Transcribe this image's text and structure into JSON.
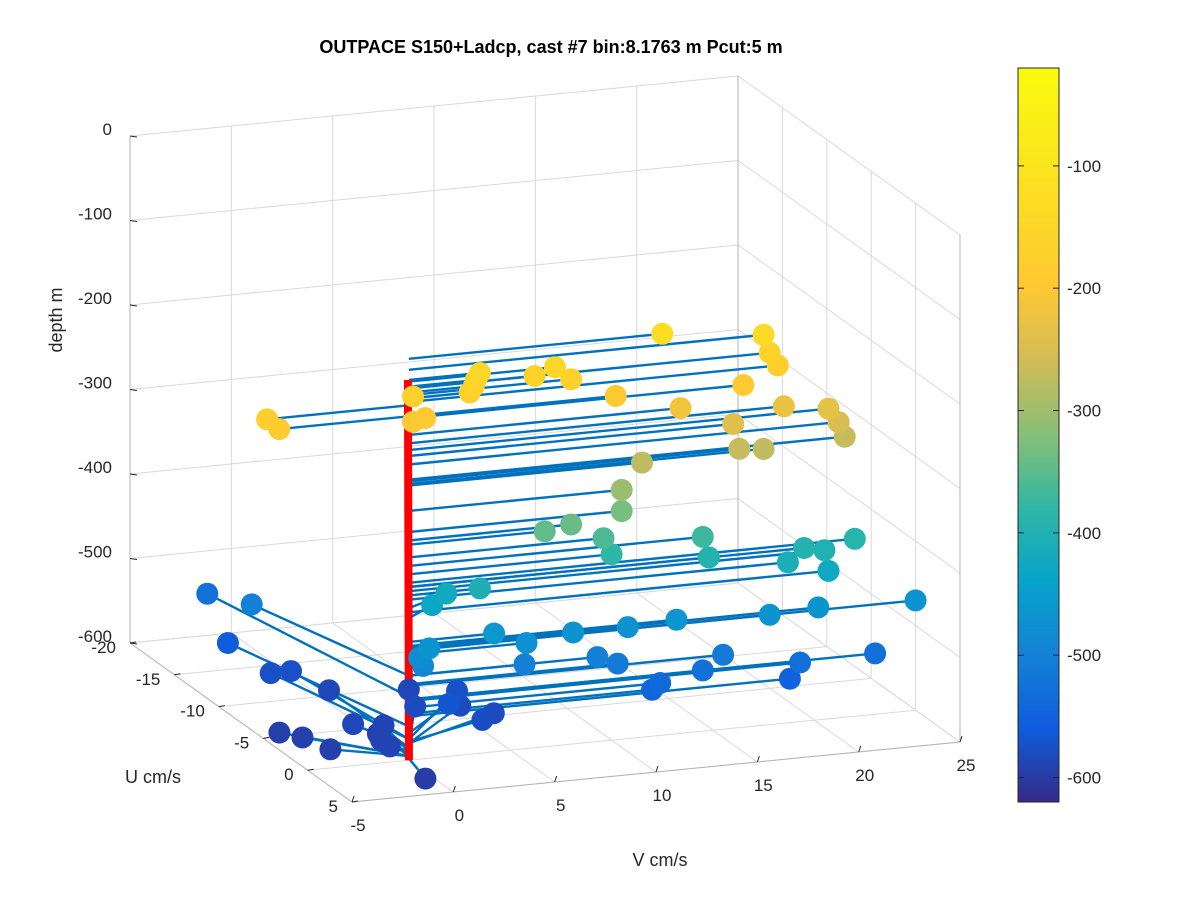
{
  "chart_data": {
    "type": "scatter",
    "title": "OUTPACE S150+Ladcp, cast #7 bin:8.1763 m  Pcut:5 m",
    "xlabel": "V cm/s",
    "ylabel": "U cm/s",
    "zlabel": "depth m",
    "xlim": [
      -5,
      25
    ],
    "ylim": [
      -20,
      5
    ],
    "zlim": [
      -600,
      0
    ],
    "x_ticks": [
      "-5",
      "0",
      "5",
      "10",
      "15",
      "20",
      "25"
    ],
    "y_ticks": [
      "-20",
      "-15",
      "-10",
      "-5",
      "0",
      "5"
    ],
    "z_ticks": [
      "0",
      "-100",
      "-200",
      "-300",
      "-400",
      "-500",
      "-600"
    ],
    "grid": true,
    "colormap": "parula",
    "colorbar": {
      "range": [
        -620,
        -20
      ],
      "ticks": [
        "-100",
        "-200",
        "-300",
        "-400",
        "-500",
        "-600"
      ]
    },
    "stick_color": "#0072BD",
    "axis_line_color": "#FF0000",
    "points": [
      {
        "v": 3.5,
        "u": 0,
        "depth": -150
      },
      {
        "v": 3.3,
        "u": 0,
        "depth": -158
      },
      {
        "v": 3.2,
        "u": 0,
        "depth": -165
      },
      {
        "v": 3.0,
        "u": 0,
        "depth": -172
      },
      {
        "v": 12.5,
        "u": 0,
        "depth": -125
      },
      {
        "v": 17.5,
        "u": 0,
        "depth": -138
      },
      {
        "v": 17.8,
        "u": 0,
        "depth": -160
      },
      {
        "v": 7.2,
        "u": 0,
        "depth": -152
      },
      {
        "v": 8.0,
        "u": 0,
        "depth": -168
      },
      {
        "v": 6.2,
        "u": 0,
        "depth": -160
      },
      {
        "v": 0.2,
        "u": 0,
        "depth": -170
      },
      {
        "v": 0.2,
        "u": 0,
        "depth": -200
      },
      {
        "v": 0.8,
        "u": 0,
        "depth": -197
      },
      {
        "v": -7.0,
        "u": 0,
        "depth": -180
      },
      {
        "v": -6.4,
        "u": 0,
        "depth": -193
      },
      {
        "v": 18.2,
        "u": 0,
        "depth": -176
      },
      {
        "v": 16.5,
        "u": 0,
        "depth": -195
      },
      {
        "v": 18.5,
        "u": 0,
        "depth": -225
      },
      {
        "v": 16.0,
        "u": 0,
        "depth": -240
      },
      {
        "v": 20.7,
        "u": 0,
        "depth": -233
      },
      {
        "v": 21.2,
        "u": 0,
        "depth": -250
      },
      {
        "v": 21.5,
        "u": 0,
        "depth": -268
      },
      {
        "v": 16.3,
        "u": 0,
        "depth": -270
      },
      {
        "v": 17.5,
        "u": 0,
        "depth": -273
      },
      {
        "v": 10.2,
        "u": 0,
        "depth": -193
      },
      {
        "v": 13.4,
        "u": 0,
        "depth": -215
      },
      {
        "v": 11.5,
        "u": 0,
        "depth": -275
      },
      {
        "v": 10.5,
        "u": 0,
        "depth": -305
      },
      {
        "v": 10.5,
        "u": 0,
        "depth": -330
      },
      {
        "v": 8.0,
        "u": 0,
        "depth": -340
      },
      {
        "v": 6.7,
        "u": 0,
        "depth": -345
      },
      {
        "v": 9.6,
        "u": 0,
        "depth": -360
      },
      {
        "v": 10.0,
        "u": 0,
        "depth": -380
      },
      {
        "v": 14.5,
        "u": 0,
        "depth": -370
      },
      {
        "v": 14.8,
        "u": 0,
        "depth": -395
      },
      {
        "v": 19.5,
        "u": 0,
        "depth": -395
      },
      {
        "v": 20.5,
        "u": 0,
        "depth": -400
      },
      {
        "v": 22.0,
        "u": 0,
        "depth": -390
      },
      {
        "v": 18.7,
        "u": 0,
        "depth": -410
      },
      {
        "v": 20.7,
        "u": 0,
        "depth": -425
      },
      {
        "v": 3.5,
        "u": 0,
        "depth": -405
      },
      {
        "v": 2.5,
        "u": -1.5,
        "depth": -420
      },
      {
        "v": 1.8,
        "u": -1.5,
        "depth": -432
      },
      {
        "v": 4.2,
        "u": 0,
        "depth": -460
      },
      {
        "v": 5.8,
        "u": 0,
        "depth": -475
      },
      {
        "v": 8.1,
        "u": 0,
        "depth": -468
      },
      {
        "v": 10.8,
        "u": 0,
        "depth": -468
      },
      {
        "v": 13.2,
        "u": 0,
        "depth": -465
      },
      {
        "v": 17.8,
        "u": 0,
        "depth": -470
      },
      {
        "v": 20.2,
        "u": 0,
        "depth": -467
      },
      {
        "v": 25.0,
        "u": 0,
        "depth": -470
      },
      {
        "v": 1.0,
        "u": 0,
        "depth": -470
      },
      {
        "v": 0.5,
        "u": 0,
        "depth": -480
      },
      {
        "v": 0.7,
        "u": 0,
        "depth": -490
      },
      {
        "v": 5.7,
        "u": 0,
        "depth": -500
      },
      {
        "v": 9.3,
        "u": 0,
        "depth": -500
      },
      {
        "v": 10.3,
        "u": 0,
        "depth": -510
      },
      {
        "v": 15.5,
        "u": 0,
        "depth": -512
      },
      {
        "v": 14.5,
        "u": 0,
        "depth": -528
      },
      {
        "v": 12.4,
        "u": 0,
        "depth": -538
      },
      {
        "v": 12.0,
        "u": 0,
        "depth": -545
      },
      {
        "v": 19.3,
        "u": 0,
        "depth": -530
      },
      {
        "v": 18.8,
        "u": 0,
        "depth": -548
      },
      {
        "v": 23.0,
        "u": 0,
        "depth": -528
      },
      {
        "v": -2.5,
        "u": -12,
        "depth": -500
      },
      {
        "v": -2.5,
        "u": -17,
        "depth": -525
      },
      {
        "v": -2.8,
        "u": -14,
        "depth": -560
      },
      {
        "v": -2.0,
        "u": -11,
        "depth": -575
      },
      {
        "v": -1.0,
        "u": -11,
        "depth": -575
      },
      {
        "v": 0.0,
        "u": -9,
        "depth": -585
      },
      {
        "v": 3.5,
        "u": -8,
        "depth": -585
      },
      {
        "v": 5.0,
        "u": -6,
        "depth": -575
      },
      {
        "v": 4.5,
        "u": -4.5,
        "depth": -580
      },
      {
        "v": 5.5,
        "u": -3,
        "depth": -580
      },
      {
        "v": 4.5,
        "u": -2,
        "depth": -578
      },
      {
        "v": 3.5,
        "u": -3.5,
        "depth": -568
      },
      {
        "v": 2.5,
        "u": -5,
        "depth": -580
      },
      {
        "v": 0.5,
        "u": -4,
        "depth": -590
      },
      {
        "v": 0.0,
        "u": -3.5,
        "depth": -595
      },
      {
        "v": -1.0,
        "u": -4,
        "depth": -585
      },
      {
        "v": -0.5,
        "u": -2,
        "depth": -590
      },
      {
        "v": -0.5,
        "u": -1,
        "depth": -590
      },
      {
        "v": -3.5,
        "u": -4,
        "depth": -595
      },
      {
        "v": -4.2,
        "u": -5,
        "depth": -595
      },
      {
        "v": -3.0,
        "u": -2,
        "depth": -595
      },
      {
        "v": -0.5,
        "u": 3,
        "depth": -598
      }
    ]
  }
}
